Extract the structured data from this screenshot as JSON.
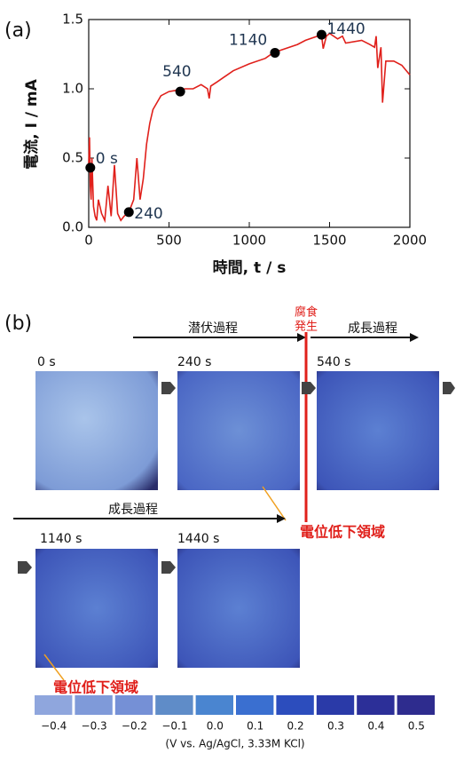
{
  "chart_data": {
    "type": "line",
    "panel_label": "(a)",
    "x_label": "時間, t / s",
    "y_label": "電流, I / mA",
    "xlim": [
      0,
      2000
    ],
    "xticks": [
      0,
      500,
      1000,
      1500,
      2000
    ],
    "ylim": [
      0,
      1.5
    ],
    "yticks": [
      {
        "value": 0,
        "label": "0.0"
      },
      0.5,
      {
        "value": 1,
        "label": "1.0"
      },
      1.5
    ],
    "x": [
      0,
      5,
      10,
      15,
      20,
      30,
      40,
      50,
      60,
      80,
      100,
      120,
      140,
      160,
      180,
      200,
      220,
      250,
      280,
      300,
      320,
      340,
      360,
      380,
      400,
      450,
      500,
      550,
      600,
      650,
      700,
      740,
      750,
      760,
      800,
      900,
      1000,
      1100,
      1150,
      1200,
      1300,
      1350,
      1400,
      1450,
      1460,
      1480,
      1500,
      1550,
      1580,
      1600,
      1700,
      1750,
      1780,
      1790,
      1800,
      1820,
      1830,
      1850,
      1900,
      1950,
      2000
    ],
    "series": [
      {
        "color": "#e0201b",
        "values": [
          0.45,
          0.65,
          0.3,
          0.2,
          0.5,
          0.15,
          0.08,
          0.05,
          0.2,
          0.1,
          0.05,
          0.3,
          0.08,
          0.45,
          0.1,
          0.05,
          0.08,
          0.11,
          0.2,
          0.5,
          0.2,
          0.35,
          0.6,
          0.75,
          0.85,
          0.95,
          0.98,
          0.99,
          1.0,
          1.0,
          1.03,
          1.0,
          0.93,
          1.02,
          1.05,
          1.13,
          1.18,
          1.22,
          1.26,
          1.28,
          1.32,
          1.35,
          1.37,
          1.39,
          1.29,
          1.38,
          1.4,
          1.36,
          1.38,
          1.33,
          1.35,
          1.32,
          1.3,
          1.38,
          1.15,
          1.3,
          0.9,
          1.2,
          1.2,
          1.17,
          1.1
        ]
      }
    ],
    "annotations": [
      {
        "text": "0 s",
        "x": 10,
        "y": 0.43
      },
      {
        "text": "240",
        "x": 250,
        "y": 0.11
      },
      {
        "text": "540",
        "x": 570,
        "y": 0.98
      },
      {
        "text": "1140",
        "x": 1160,
        "y": 1.26
      },
      {
        "text": "1440",
        "x": 1450,
        "y": 1.39
      }
    ]
  },
  "panel_b": {
    "panel_label": "(b)",
    "stage_latent": "潜伏過程",
    "corrosion_onset": [
      "腐食",
      "発生"
    ],
    "stage_growth_1": "成長過程",
    "stage_growth_2": "成長過程",
    "times": [
      "0 s",
      "240 s",
      "540 s",
      "1140 s",
      "1440 s"
    ],
    "low_potential_1": "電位低下領域",
    "low_potential_2": "電位低下領域",
    "colorbar": {
      "ticks": [
        {
          "value": -0.4,
          "label": "−0.4"
        },
        {
          "value": -0.3,
          "label": "−0.3"
        },
        {
          "value": -0.2,
          "label": "−0.2"
        },
        {
          "value": -0.1,
          "label": "−0.1"
        },
        {
          "value": 0,
          "label": "0.0"
        },
        0.1,
        0.2,
        0.3,
        0.4,
        0.5
      ],
      "colors": [
        "#8fa6dd",
        "#7f9ad9",
        "#7590d6",
        "#5f8cc8",
        "#4a85d0",
        "#3a6fd0",
        "#2c4dbd",
        "#2a3aa8",
        "#2c2f98",
        "#2e2c8e"
      ],
      "unit": "(V vs. Ag/AgCl, 3.33M KCl)"
    }
  }
}
